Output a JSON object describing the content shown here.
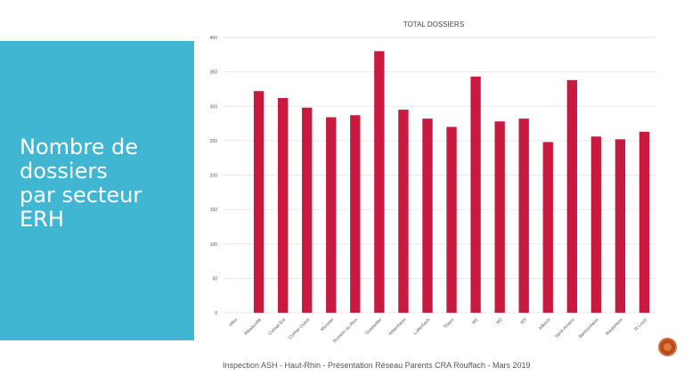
{
  "slide": {
    "side_title": "Nombre de\ndossiers\npar secteur\nERH",
    "footer": "Inspection ASH - Haut-Rhin - Présentation Réseau Parents CRA Rouffach - Mars 2019",
    "panel_color": "#40b6d3",
    "nav_button_icon": "circle-button-icon"
  },
  "chart_data": {
    "type": "bar",
    "title": "TOTAL DOSSIERS",
    "xlabel": "",
    "ylabel": "",
    "ylim": [
      0,
      400
    ],
    "yticks": [
      0,
      50,
      100,
      150,
      200,
      250,
      300,
      350,
      400
    ],
    "categories": [
      "villes",
      "Ribeauvillé",
      "Colmar Est",
      "Colmar Ouest",
      "Munster",
      "Rixheim du Rhin",
      "Guebwiller",
      "Wittenheim",
      "Lutterbach",
      "Thann",
      "M1",
      "M2",
      "M3",
      "Altkirch",
      "Saint-Amarin",
      "Bantzenheim",
      "Riedisheim",
      "St Louis"
    ],
    "values": [
      0,
      322,
      312,
      298,
      284,
      287,
      380,
      295,
      282,
      270,
      343,
      278,
      282,
      248,
      338,
      256,
      252,
      263
    ],
    "bar_color": "#c8193f",
    "grid": true
  }
}
